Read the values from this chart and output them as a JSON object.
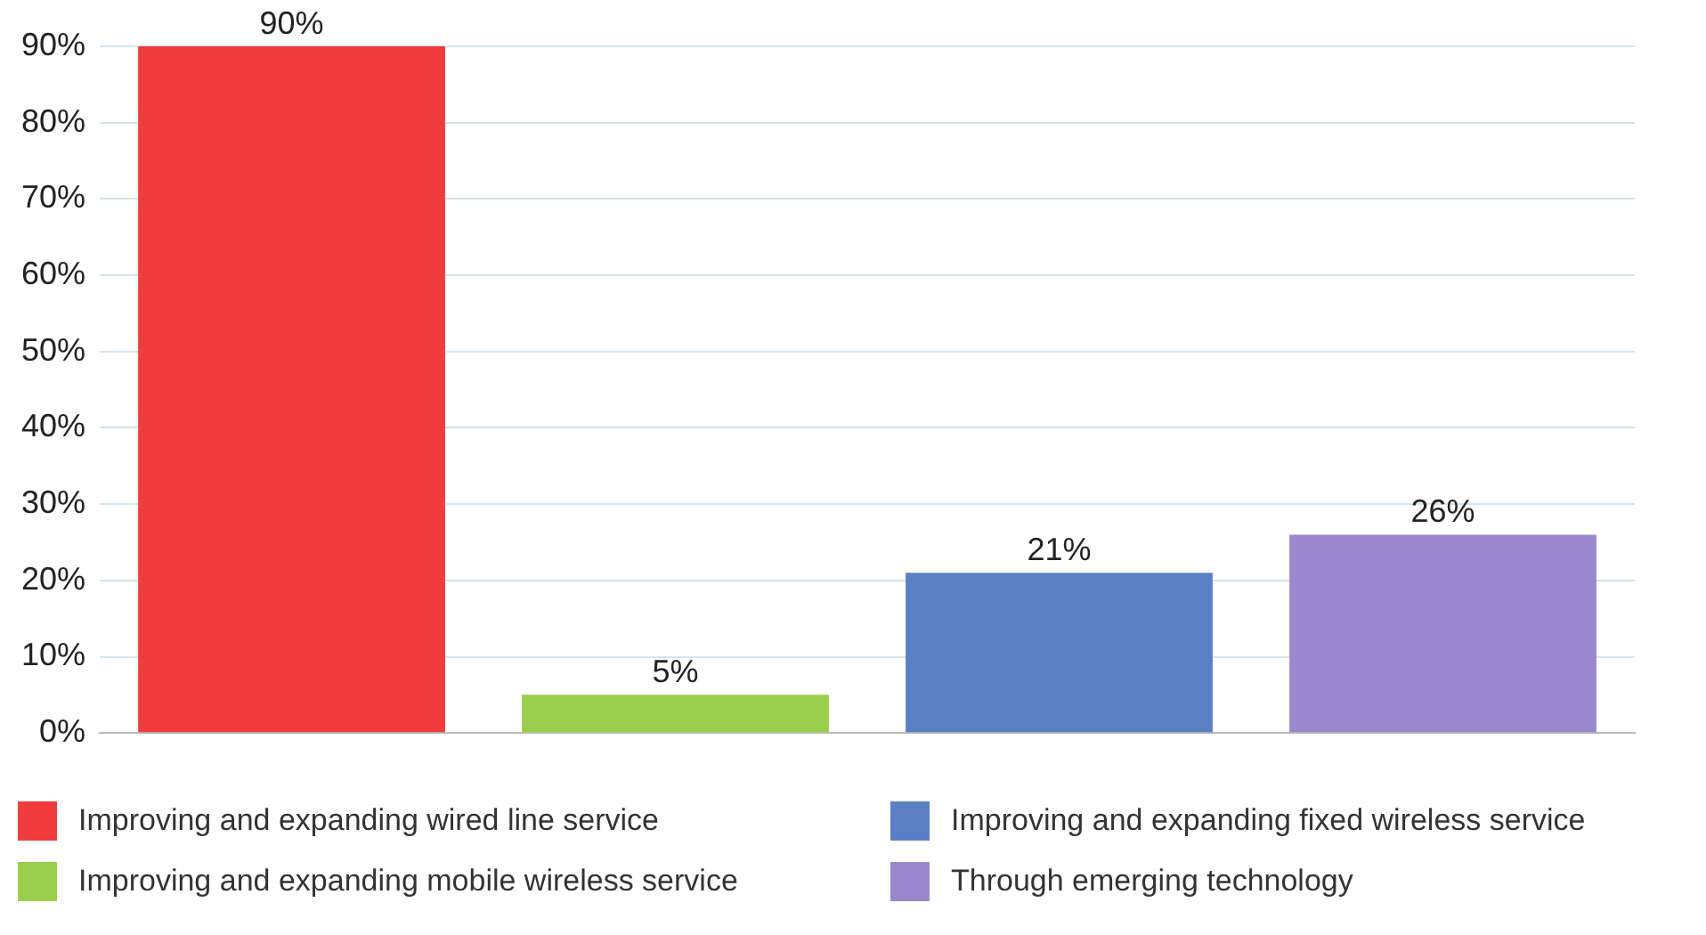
{
  "chart_data": {
    "type": "bar",
    "categories": [
      null,
      null,
      null,
      null
    ],
    "series": [
      {
        "name": "Improving and expanding wired line service",
        "color": "#f03c3c",
        "values": [
          90,
          null,
          null,
          null
        ],
        "value_labels": [
          "90%",
          null,
          null,
          null
        ]
      },
      {
        "name": "Improving and expanding mobile wireless service",
        "color": "#9acd4c",
        "values": [
          null,
          5,
          null,
          null
        ],
        "value_labels": [
          null,
          "5%",
          null,
          null
        ]
      },
      {
        "name": "Improving and expanding fixed wireless service",
        "color": "#5b7fc4",
        "values": [
          null,
          null,
          21,
          null
        ],
        "value_labels": [
          null,
          null,
          "21%",
          null
        ]
      },
      {
        "name": "Through emerging technology",
        "color": "#9b88cc",
        "values": [
          null,
          null,
          null,
          26
        ],
        "value_labels": [
          null,
          null,
          null,
          "26%"
        ]
      }
    ],
    "ylim": [
      0,
      90
    ],
    "yticks": [
      {
        "value": 0,
        "label": "0%"
      },
      {
        "value": 10,
        "label": "10%"
      },
      {
        "value": 20,
        "label": "20%"
      },
      {
        "value": 30,
        "label": "30%"
      },
      {
        "value": 40,
        "label": "40%"
      },
      {
        "value": 50,
        "label": "50%"
      },
      {
        "value": 60,
        "label": "60%"
      },
      {
        "value": 70,
        "label": "70%"
      },
      {
        "value": 80,
        "label": "80%"
      },
      {
        "value": 90,
        "label": "90%"
      }
    ],
    "grid": "y",
    "legend": "bottom"
  }
}
